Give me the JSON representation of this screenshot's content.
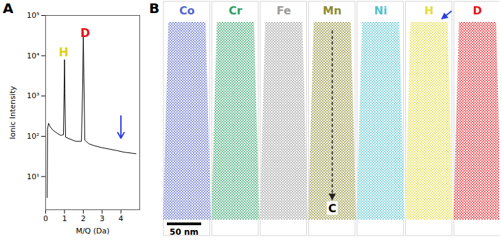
{
  "chart_data": {
    "type": "line",
    "panel": "A",
    "x_label": "M/Q (Da)",
    "y_label": "Ionic Intensity",
    "log": "y",
    "xlim": [
      0,
      5
    ],
    "ylim": [
      1.5,
      100000
    ],
    "xticks": [
      0,
      1,
      2,
      3,
      4
    ],
    "yticks": [
      {
        "value": 10,
        "label": "10¹"
      },
      {
        "value": 100,
        "label": "10²"
      },
      {
        "value": 1000,
        "label": "10³"
      },
      {
        "value": 10000,
        "label": "10⁴"
      },
      {
        "value": 100000,
        "label": "10⁵"
      }
    ],
    "color": "#000000",
    "x": [
      0.08,
      0.1,
      0.15,
      0.25,
      0.4,
      0.6,
      0.8,
      0.95,
      0.98,
      1.0,
      1.02,
      1.06,
      1.3,
      1.6,
      1.9,
      1.97,
      2.0,
      2.03,
      2.08,
      2.3,
      2.6,
      3.0,
      3.4,
      3.8,
      4.2,
      4.6,
      4.8
    ],
    "values": [
      3,
      150,
      210,
      170,
      140,
      120,
      105,
      110,
      1500,
      8000,
      1200,
      95,
      85,
      75,
      75,
      2000,
      40000,
      3000,
      80,
      65,
      58,
      52,
      48,
      44,
      40,
      38,
      37
    ],
    "annotations": [
      {
        "text": "H",
        "x": 0.95,
        "y": 12000,
        "color": "#e0cf1a"
      },
      {
        "text": "D",
        "x": 2.1,
        "y": 36000,
        "color": "#e8141c"
      },
      {
        "marker": "arrow",
        "x": 4,
        "y": 90,
        "y_from": 320,
        "color": "#2a3fe0"
      }
    ]
  },
  "maps": {
    "panel": "B",
    "scale_bar": "50 nm",
    "profile_label": "C",
    "elements": [
      {
        "label": "Co",
        "color": "#5566cc"
      },
      {
        "label": "Cr",
        "color": "#27a061"
      },
      {
        "label": "Fe",
        "color": "#9a9a9a"
      },
      {
        "label": "Mn",
        "color": "#8b8a2e"
      },
      {
        "label": "Ni",
        "color": "#4fc3cc"
      },
      {
        "label": "H",
        "color": "#e3dc3c",
        "marker": "arrow"
      },
      {
        "label": "D",
        "color": "#e3141c"
      }
    ]
  }
}
